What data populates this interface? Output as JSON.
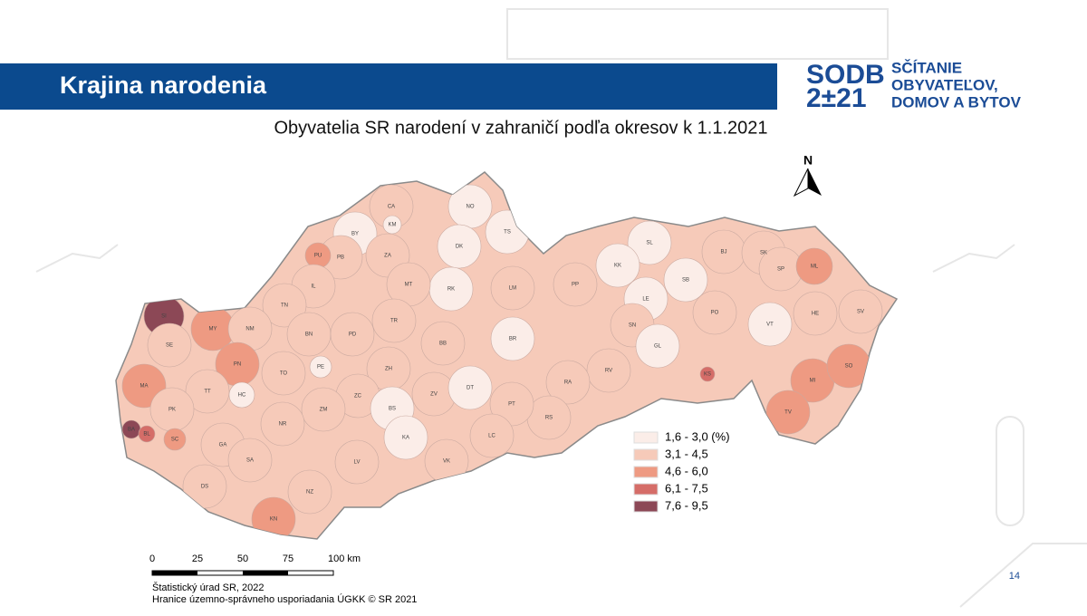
{
  "header": {
    "title": "Krajina narodenia"
  },
  "logo": {
    "mark_top": "SODB",
    "mark_bottom": "2±21",
    "lines": [
      "SČÍTANIE",
      "OBYVATEĽOV,",
      "DOMOV A BYTOV"
    ]
  },
  "map": {
    "title": "Obyvatelia SR narodení v zahraničí podľa okresov k 1.1.2021",
    "north": "N",
    "legend": [
      {
        "label": "1,6 - 3,0 (%)",
        "color": "#fbede8"
      },
      {
        "label": "3,1 - 4,5",
        "color": "#f6cab9"
      },
      {
        "label": "4,6 - 6,0",
        "color": "#ee9a82"
      },
      {
        "label": "6,1 - 7,5",
        "color": "#d56d68"
      },
      {
        "label": "7,6 - 9,5",
        "color": "#8c4856"
      }
    ],
    "scale": [
      "0",
      "25",
      "50",
      "75",
      "100 km"
    ],
    "districts": [
      {
        "code": "CA",
        "color": "#f6cab9"
      },
      {
        "code": "KM",
        "color": "#fbede8"
      },
      {
        "code": "NO",
        "color": "#fbede8"
      },
      {
        "code": "TS",
        "color": "#fbede8"
      },
      {
        "code": "BY",
        "color": "#fbede8"
      },
      {
        "code": "DK",
        "color": "#fbede8"
      },
      {
        "code": "ZA",
        "color": "#f6cab9"
      },
      {
        "code": "PB",
        "color": "#f6cab9"
      },
      {
        "code": "PU",
        "color": "#ee9a82"
      },
      {
        "code": "SL",
        "color": "#fbede8"
      },
      {
        "code": "BJ",
        "color": "#f6cab9"
      },
      {
        "code": "SK",
        "color": "#f6cab9"
      },
      {
        "code": "SP",
        "color": "#f6cab9"
      },
      {
        "code": "ML",
        "color": "#ee9a82"
      },
      {
        "code": "KK",
        "color": "#fbede8"
      },
      {
        "code": "SB",
        "color": "#fbede8"
      },
      {
        "code": "LM",
        "color": "#f6cab9"
      },
      {
        "code": "RK",
        "color": "#fbede8"
      },
      {
        "code": "MT",
        "color": "#f6cab9"
      },
      {
        "code": "IL",
        "color": "#f6cab9"
      },
      {
        "code": "PP",
        "color": "#f6cab9"
      },
      {
        "code": "LE",
        "color": "#fbede8"
      },
      {
        "code": "PO",
        "color": "#f6cab9"
      },
      {
        "code": "HE",
        "color": "#f6cab9"
      },
      {
        "code": "SV",
        "color": "#f6cab9"
      },
      {
        "code": "VT",
        "color": "#fbede8"
      },
      {
        "code": "SI",
        "color": "#8c4856"
      },
      {
        "code": "MY",
        "color": "#ee9a82"
      },
      {
        "code": "TN",
        "color": "#f6cab9"
      },
      {
        "code": "NM",
        "color": "#f6cab9"
      },
      {
        "code": "BN",
        "color": "#f6cab9"
      },
      {
        "code": "PD",
        "color": "#f6cab9"
      },
      {
        "code": "TR",
        "color": "#f6cab9"
      },
      {
        "code": "SN",
        "color": "#f6cab9"
      },
      {
        "code": "BR",
        "color": "#fbede8"
      },
      {
        "code": "BB",
        "color": "#f6cab9"
      },
      {
        "code": "SE",
        "color": "#f6cab9"
      },
      {
        "code": "GL",
        "color": "#fbede8"
      },
      {
        "code": "PN",
        "color": "#ee9a82"
      },
      {
        "code": "PE",
        "color": "#fbede8"
      },
      {
        "code": "ZH",
        "color": "#f6cab9"
      },
      {
        "code": "TO",
        "color": "#f6cab9"
      },
      {
        "code": "MI",
        "color": "#ee9a82"
      },
      {
        "code": "SO",
        "color": "#ee9a82"
      },
      {
        "code": "RV",
        "color": "#f6cab9"
      },
      {
        "code": "RA",
        "color": "#f6cab9"
      },
      {
        "code": "MA",
        "color": "#ee9a82"
      },
      {
        "code": "TT",
        "color": "#f6cab9"
      },
      {
        "code": "HC",
        "color": "#fbede8"
      },
      {
        "code": "ZC",
        "color": "#f6cab9"
      },
      {
        "code": "ZV",
        "color": "#f6cab9"
      },
      {
        "code": "DT",
        "color": "#fbede8"
      },
      {
        "code": "KS",
        "color": "#d56d68"
      },
      {
        "code": "BS",
        "color": "#fbede8"
      },
      {
        "code": "ZM",
        "color": "#f6cab9"
      },
      {
        "code": "RS",
        "color": "#f6cab9"
      },
      {
        "code": "PK",
        "color": "#f6cab9"
      },
      {
        "code": "PT",
        "color": "#f6cab9"
      },
      {
        "code": "BA",
        "color": "#8c4856"
      },
      {
        "code": "BL",
        "color": "#d56d68"
      },
      {
        "code": "SC",
        "color": "#ee9a82"
      },
      {
        "code": "NR",
        "color": "#f6cab9"
      },
      {
        "code": "LC",
        "color": "#f6cab9"
      },
      {
        "code": "TV",
        "color": "#ee9a82"
      },
      {
        "code": "GA",
        "color": "#f6cab9"
      },
      {
        "code": "SA",
        "color": "#f6cab9"
      },
      {
        "code": "VK",
        "color": "#f6cab9"
      },
      {
        "code": "LV",
        "color": "#f6cab9"
      },
      {
        "code": "DS",
        "color": "#f6cab9"
      },
      {
        "code": "NZ",
        "color": "#f6cab9"
      },
      {
        "code": "KN",
        "color": "#ee9a82"
      },
      {
        "code": "KA",
        "color": "#fbede8"
      }
    ]
  },
  "footer": {
    "source": "Štatistický úrad SR, 2022",
    "boundaries": "Hranice územno-správneho usporiadania ÚGKK © SR 2021",
    "page": "14"
  }
}
